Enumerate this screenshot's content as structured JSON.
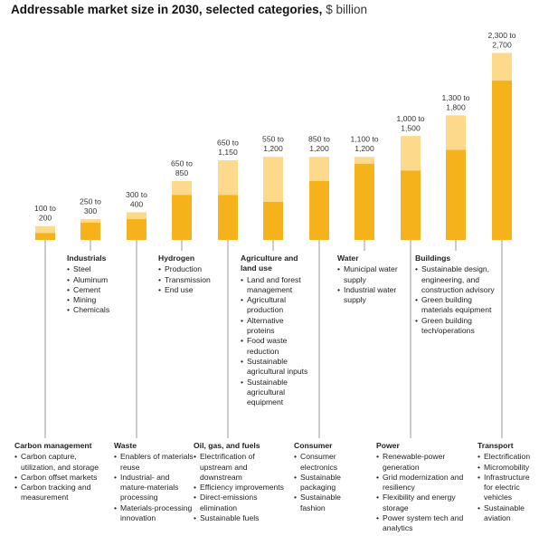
{
  "title": {
    "main": "Addressable market size in 2030, selected categories,",
    "unit": "$ billion"
  },
  "colors": {
    "low": "#f5b21b",
    "high": "#fdd98b",
    "axis": "#999999"
  },
  "chart_data": {
    "type": "bar",
    "stacked": "range",
    "title": "Addressable market size in 2030, selected categories, $ billion",
    "ylim": [
      0,
      2700
    ],
    "categories": [
      "Carbon management",
      "Industrials",
      "Waste",
      "Hydrogen",
      "Oil, gas, and fuels",
      "Agriculture and land use",
      "Consumer",
      "Water",
      "Power",
      "Buildings",
      "Transport"
    ],
    "low": [
      100,
      250,
      300,
      650,
      650,
      550,
      850,
      1100,
      1000,
      1300,
      2300
    ],
    "high": [
      200,
      300,
      400,
      850,
      1150,
      1200,
      1200,
      1200,
      1500,
      1800,
      2700
    ],
    "labels": [
      [
        "100 to",
        "200"
      ],
      [
        "250 to",
        "300"
      ],
      [
        "300 to",
        "400"
      ],
      [
        "650 to",
        "850"
      ],
      [
        "650 to",
        "1,150"
      ],
      [
        "550 to",
        "1,200"
      ],
      [
        "850 to",
        "1,200"
      ],
      [
        "1,100 to",
        "1,200"
      ],
      [
        "1,000 to",
        "1,500"
      ],
      [
        "1,300 to",
        "1,800"
      ],
      [
        "2,300 to",
        "2,700"
      ]
    ]
  },
  "categories": [
    {
      "name": "Carbon management",
      "items": [
        "Carbon capture, utilization, and storage",
        "Carbon offset markets",
        "Carbon tracking and measurement"
      ]
    },
    {
      "name": "Industrials",
      "items": [
        "Steel",
        "Aluminum",
        "Cement",
        "Mining",
        "Chemicals"
      ]
    },
    {
      "name": "Waste",
      "items": [
        "Enablers of materials reuse",
        "Industrial- and mature-materials processing",
        "Materials-processing innovation"
      ]
    },
    {
      "name": "Hydrogen",
      "items": [
        "Production",
        "Transmission",
        "End use"
      ]
    },
    {
      "name": "Oil, gas, and fuels",
      "items": [
        "Electrification of upstream and downstream",
        "Efficiency improvements",
        "Direct-emissions elimination",
        "Sustainable fuels"
      ]
    },
    {
      "name": "Agriculture and land use",
      "items": [
        "Land and forest management",
        "Agricultural production",
        "Alternative proteins",
        "Food waste reduction",
        "Sustainable agricultural inputs",
        "Sustainable agricultural equipment"
      ]
    },
    {
      "name": "Consumer",
      "items": [
        "Consumer electronics",
        "Sustainable packaging",
        "Sustainable fashion"
      ]
    },
    {
      "name": "Water",
      "items": [
        "Municipal water supply",
        "Industrial water supply"
      ]
    },
    {
      "name": "Power",
      "items": [
        "Renewable-power generation",
        "Grid modernization and resiliency",
        "Flexibility and energy storage",
        "Power system tech and analytics"
      ]
    },
    {
      "name": "Buildings",
      "items": [
        "Sustainable design, engineering, and construction advisory",
        "Green building materials equipment",
        "Green building tech/operations"
      ]
    },
    {
      "name": "Transport",
      "items": [
        "Electrification",
        "Micromobility",
        "Infrastructure for electric vehicles",
        "Sustainable aviation"
      ]
    }
  ]
}
